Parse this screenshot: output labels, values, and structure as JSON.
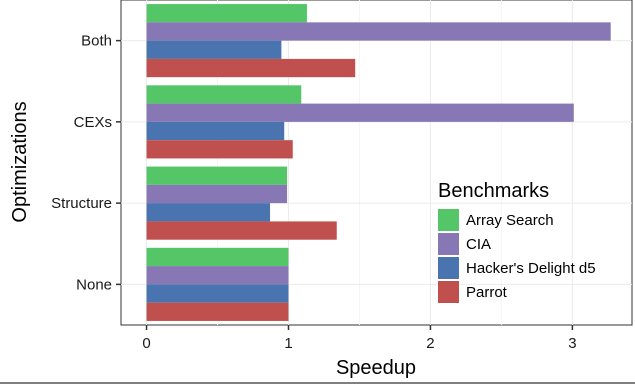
{
  "chart_data": {
    "type": "bar",
    "orientation": "horizontal",
    "categories": [
      "None",
      "Structure",
      "CEXs",
      "Both"
    ],
    "series": [
      {
        "name": "Array Search",
        "color": "#55c667",
        "values": [
          1.0,
          0.99,
          1.09,
          1.13
        ]
      },
      {
        "name": "CIA",
        "color": "#8877b5",
        "values": [
          1.0,
          0.99,
          3.01,
          3.27
        ]
      },
      {
        "name": "Hacker's Delight d5",
        "color": "#4a74b0",
        "values": [
          1.0,
          0.87,
          0.97,
          0.95
        ]
      },
      {
        "name": "Parrot",
        "color": "#c0504d",
        "values": [
          1.0,
          1.34,
          1.03,
          1.47
        ]
      }
    ],
    "title": "",
    "xlabel": "Speedup",
    "ylabel": "Optimizations",
    "xlim": [
      -0.18,
      3.42
    ],
    "xticks": [
      0,
      1,
      2,
      3
    ],
    "grid": true,
    "legend_title": "Benchmarks",
    "legend_position": "bottom-right-inside"
  }
}
